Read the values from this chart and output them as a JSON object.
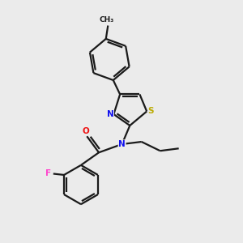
{
  "background_color": "#ebebeb",
  "bond_color": "#1a1a1a",
  "atom_colors": {
    "N": "#1010ee",
    "O": "#ee1010",
    "S": "#bbaa00",
    "F": "#ff44cc",
    "C": "#1a1a1a"
  },
  "figsize": [
    3.0,
    3.0
  ],
  "dpi": 100,
  "lw": 1.6,
  "fontsize": 7.5
}
